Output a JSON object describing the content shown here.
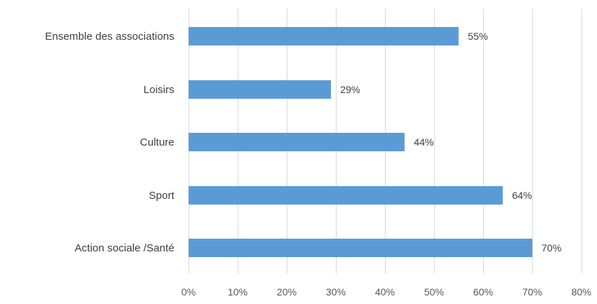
{
  "chart_data": {
    "type": "bar",
    "orientation": "horizontal",
    "categories": [
      "Ensemble des associations",
      "Loisirs",
      "Culture",
      "Sport",
      "Action sociale /Santé"
    ],
    "values": [
      55,
      29,
      44,
      64,
      70
    ],
    "value_labels": [
      "55%",
      "29%",
      "44%",
      "64%",
      "70%"
    ],
    "xlim": [
      0,
      80
    ],
    "x_ticks": [
      0,
      10,
      20,
      30,
      40,
      50,
      60,
      70,
      80
    ],
    "x_tick_labels": [
      "0%",
      "10%",
      "20%",
      "30%",
      "40%",
      "50%",
      "60%",
      "70%",
      "80%"
    ],
    "title": "",
    "xlabel": "",
    "ylabel": "",
    "grid": "vertical",
    "legend": "none",
    "bar_color": "#5b9bd5"
  }
}
